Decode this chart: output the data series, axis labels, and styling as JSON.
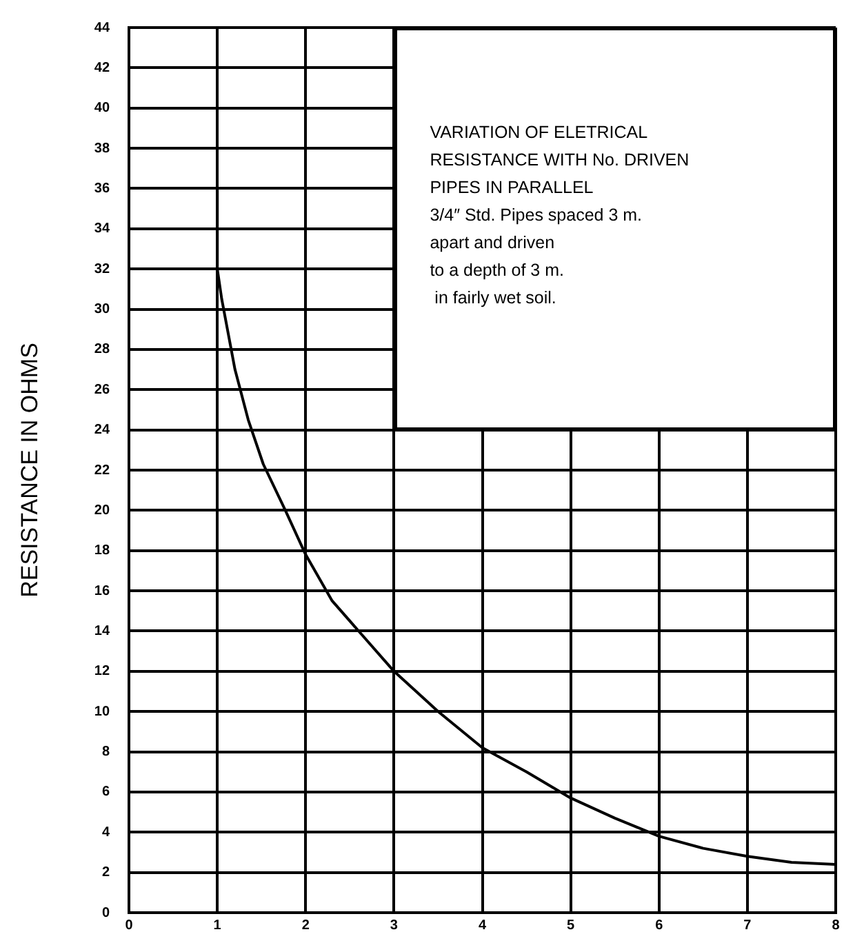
{
  "chart_data": {
    "type": "line",
    "title": "VARIATION OF ELETRICAL RESISTANCE WITH No. DRIVEN PIPES IN PARALLEL",
    "annotations": [
      "3/4″ Std. Pipes spaced 3 m.",
      "apart and driven",
      "to a depth of 3 m.",
      " in fairly wet soil."
    ],
    "ylabel": "RESISTANCE IN OHMS",
    "x": [
      1,
      1,
      1.05,
      1.2,
      1.35,
      1.52,
      1.77,
      2,
      2.3,
      2.6,
      3,
      3.5,
      4,
      4.5,
      5,
      5.5,
      6,
      6.5,
      7,
      7.5,
      8
    ],
    "series": [
      {
        "color": "#000000",
        "values": [
          36,
          32,
          30.5,
          27,
          24.5,
          22.3,
          20,
          17.8,
          15.5,
          14,
          12,
          10,
          8.2,
          7,
          5.7,
          4.7,
          3.8,
          3.2,
          2.8,
          2.5,
          2.4
        ]
      }
    ],
    "xlim": [
      0,
      8
    ],
    "xticks": [
      0,
      1,
      2,
      3,
      4,
      5,
      6,
      7,
      8
    ],
    "ylim": [
      0,
      44
    ],
    "yticks": [
      0,
      2,
      4,
      6,
      8,
      10,
      12,
      14,
      16,
      18,
      20,
      22,
      24,
      26,
      28,
      30,
      32,
      34,
      36,
      38,
      40,
      42,
      44
    ],
    "grid": true,
    "legend": false,
    "marker": "none",
    "line_style": "solid"
  }
}
